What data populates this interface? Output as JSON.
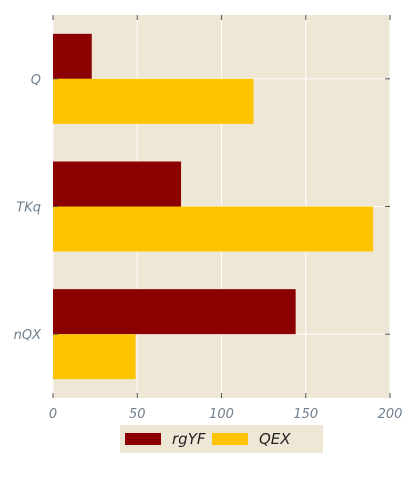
{
  "chart_data": {
    "type": "bar",
    "orientation": "horizontal",
    "categories": [
      "Q",
      "TKq",
      "nQX"
    ],
    "series": [
      {
        "name": "rgYF",
        "values": [
          23,
          76,
          144
        ],
        "color": "#8b0000"
      },
      {
        "name": "QEX",
        "values": [
          119,
          190,
          49
        ],
        "color": "#ffc400"
      }
    ],
    "xlim": [
      0,
      200
    ],
    "xticks": [
      0,
      50,
      100,
      150,
      200
    ],
    "grid": true,
    "legend_placement": "bottom-center",
    "colors": {
      "plot_background": "#efe7d6",
      "grid": "#ffffff",
      "tick_label": "#6f7f8f"
    }
  }
}
